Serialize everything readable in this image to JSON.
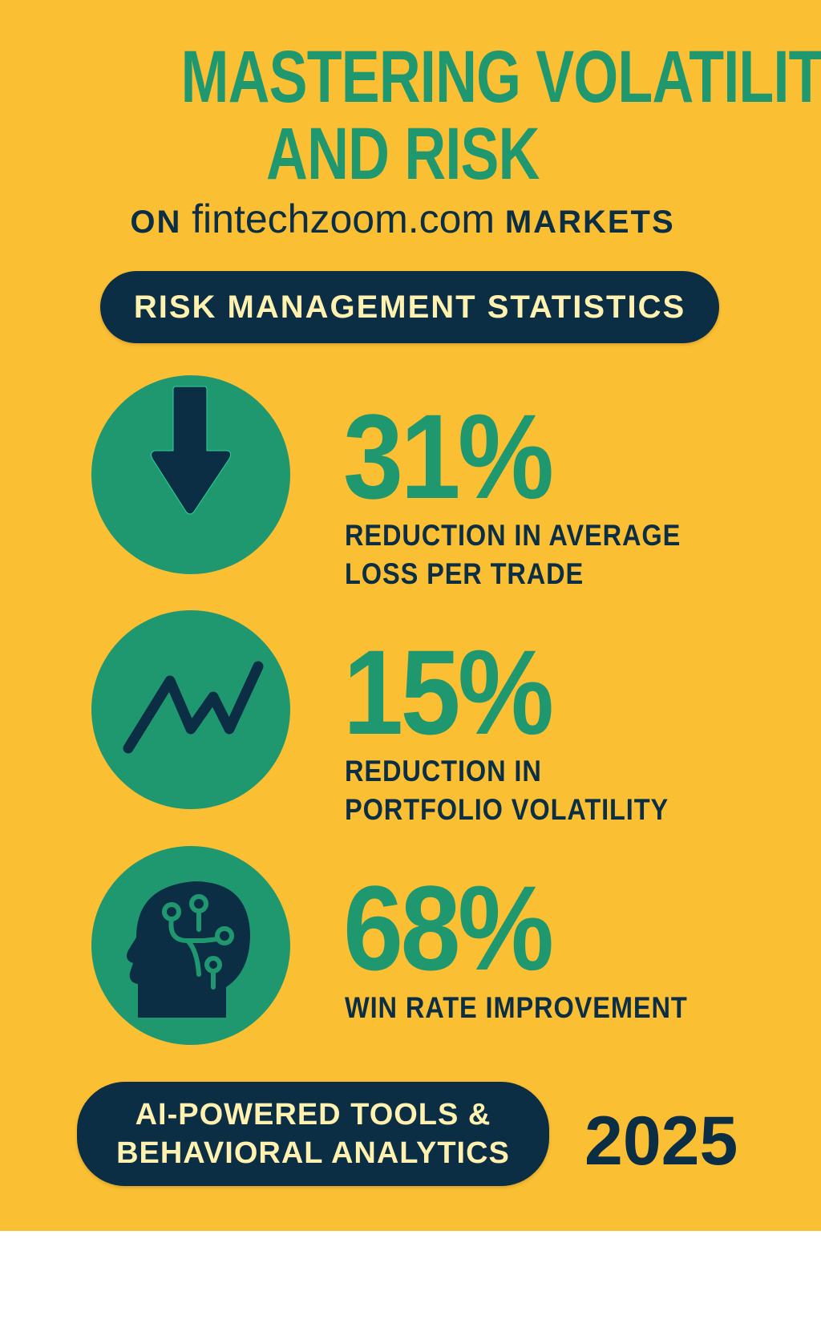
{
  "header": {
    "title_line1": "MASTERING VOLATILITY",
    "title_line2": "AND RISK",
    "subtitle_prefix": "ON",
    "subtitle_domain": "fintechzoom.com",
    "subtitle_suffix": "MARKETS"
  },
  "section_label": "RISK MANAGEMENT STATISTICS",
  "stats": [
    {
      "value": "31%",
      "label_line1": "REDUCTION IN AVERAGE",
      "label_line2": "LOSS PER TRADE",
      "icon": "down-arrow-icon"
    },
    {
      "value": "15%",
      "label_line1": "REDUCTION IN",
      "label_line2": "PORTFOLIO VOLATILITY",
      "icon": "zigzag-chart-icon"
    },
    {
      "value": "68%",
      "label_line1": "WIN RATE IMPROVEMENT",
      "icon": "ai-head-icon"
    }
  ],
  "footer": {
    "badge_line1": "AI-POWERED TOOLS &",
    "badge_line2": "BEHAVIORAL ANALYTICS",
    "year": "2025"
  },
  "colors": {
    "background": "#FBBF33",
    "accent_green": "#1F9870",
    "navy": "#0B2E45",
    "cream": "#FFF1B0"
  }
}
